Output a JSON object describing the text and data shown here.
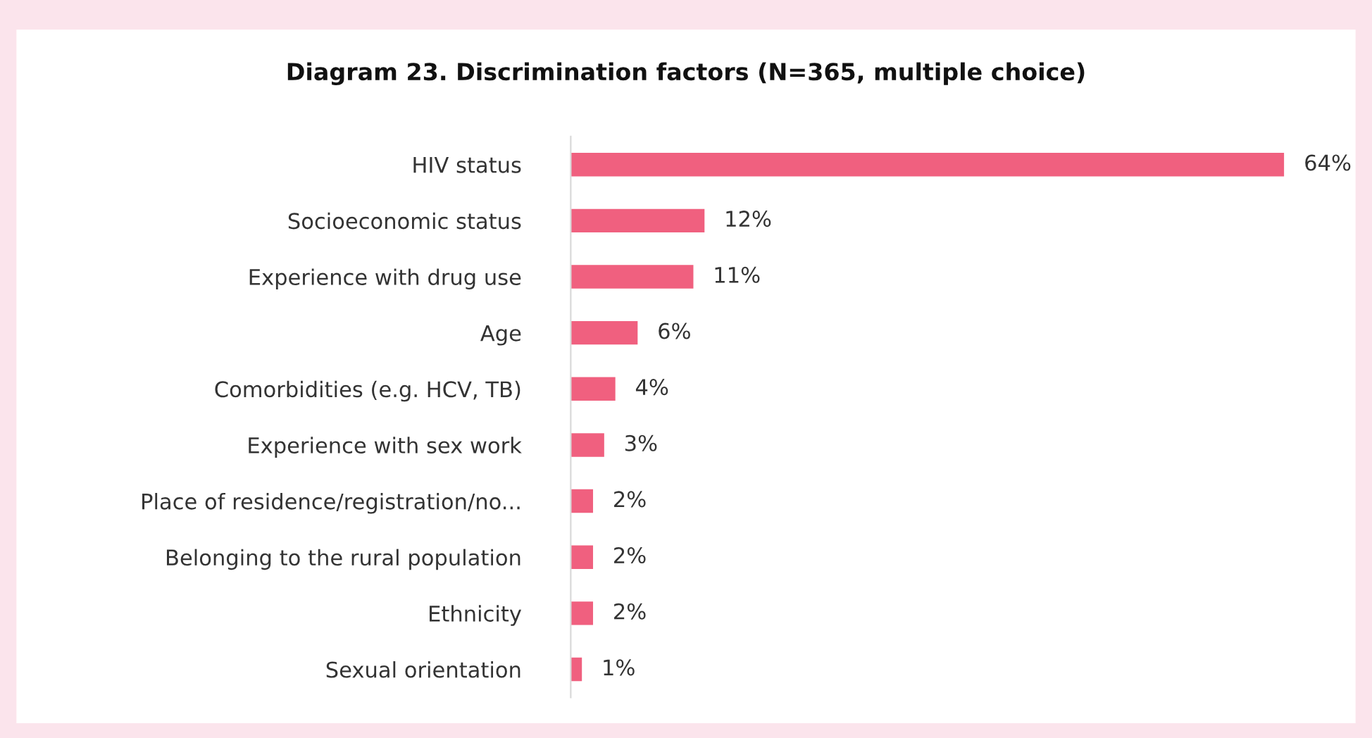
{
  "chart_data": {
    "type": "bar",
    "orientation": "horizontal",
    "title": "Diagram 23. Discrimination factors (N=365, multiple choice)",
    "categories": [
      "HIV status",
      "Socioeconomic status",
      "Experience with drug use",
      "Age",
      "Comorbidities (e.g. HCV, TB)",
      "Experience with sex work",
      "Place of residence/registration/no...",
      "Belonging to the rural population",
      "Ethnicity",
      "Sexual orientation"
    ],
    "values": [
      64,
      12,
      11,
      6,
      4,
      3,
      2,
      2,
      2,
      1
    ],
    "value_labels": [
      "64%",
      "12%",
      "11%",
      "6%",
      "4%",
      "3%",
      "2%",
      "2%",
      "2%",
      "1%"
    ],
    "color": "#f0607f",
    "grid": false,
    "legend": false
  }
}
